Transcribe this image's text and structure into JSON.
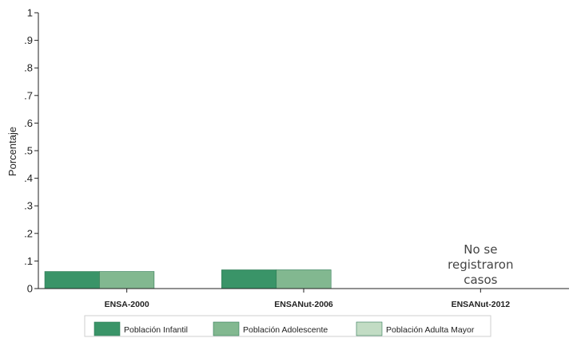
{
  "chart_data": {
    "type": "bar",
    "title": "",
    "xlabel": "",
    "ylabel": "Porcentaje",
    "ylim": [
      0,
      1
    ],
    "yticks": [
      "0",
      ".1",
      ".2",
      ".3",
      ".4",
      ".5",
      ".6",
      ".7",
      ".8",
      ".9",
      "1"
    ],
    "grid": false,
    "legend_position": "bottom",
    "categories": [
      "ENSA-2000",
      "ENSANut-2006",
      "ENSANut-2012"
    ],
    "series": [
      {
        "name": "Población Infantil",
        "color": "#3a9468",
        "values": [
          0.062,
          0.068,
          null
        ]
      },
      {
        "name": "Población Adolescente",
        "color": "#82b890",
        "values": [
          0.062,
          0.068,
          null
        ]
      },
      {
        "name": "Población Adulta Mayor",
        "color": "#c2dcc4",
        "values": [
          null,
          null,
          null
        ]
      }
    ],
    "annotations": [
      {
        "category_index": 2,
        "lines": [
          "No se",
          "registraron",
          "casos"
        ]
      }
    ]
  }
}
